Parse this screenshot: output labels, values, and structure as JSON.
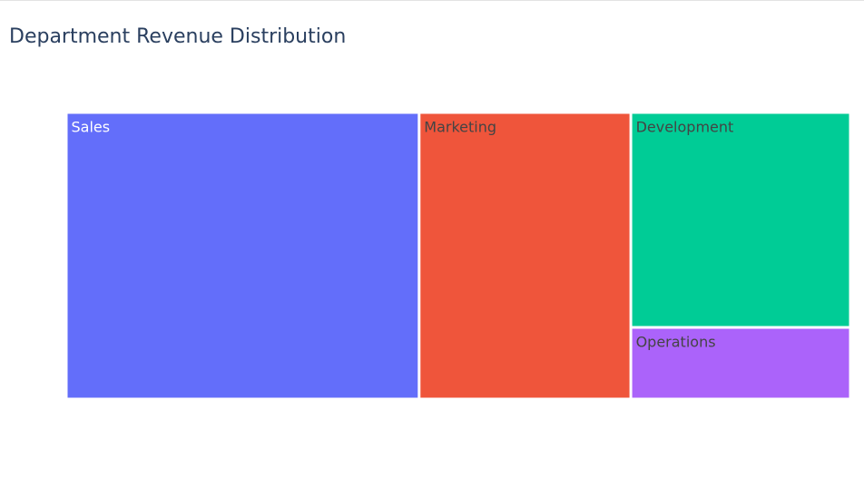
{
  "chart_data": {
    "type": "treemap",
    "title": "Department Revenue Distribution",
    "items": [
      {
        "label": "Sales",
        "value": 45,
        "color": "#636efa",
        "text_color": "#ffffff"
      },
      {
        "label": "Marketing",
        "value": 27,
        "color": "#ef553b",
        "text_color": "#444444"
      },
      {
        "label": "Development",
        "value": 21,
        "color": "#00cc96",
        "text_color": "#444444"
      },
      {
        "label": "Operations",
        "value": 7,
        "color": "#ab63fa",
        "text_color": "#444444"
      }
    ]
  }
}
